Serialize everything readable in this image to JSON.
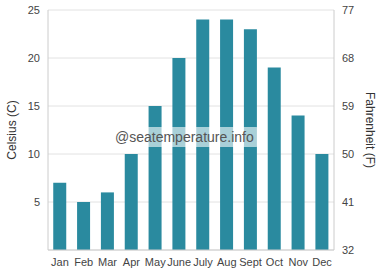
{
  "chart_data": {
    "type": "bar",
    "categories": [
      "Jan",
      "Feb",
      "Mar",
      "Apr",
      "May",
      "June",
      "July",
      "Aug",
      "Sept",
      "Oct",
      "Nov",
      "Dec"
    ],
    "values": [
      7,
      5,
      6,
      10,
      15,
      20,
      24,
      24,
      23,
      19,
      14,
      10
    ],
    "color": "#2a8a9f",
    "ylabel": "Celsius (C)",
    "ylim": [
      0,
      25
    ],
    "yticks": [
      5,
      10,
      15,
      20,
      25
    ],
    "y2label": "Fahrenheit (F)",
    "y2lim": [
      32,
      77
    ],
    "y2ticks": [
      32,
      41,
      50,
      59,
      68,
      77
    ],
    "annotation": "@seatemperature.info",
    "grid": true
  }
}
